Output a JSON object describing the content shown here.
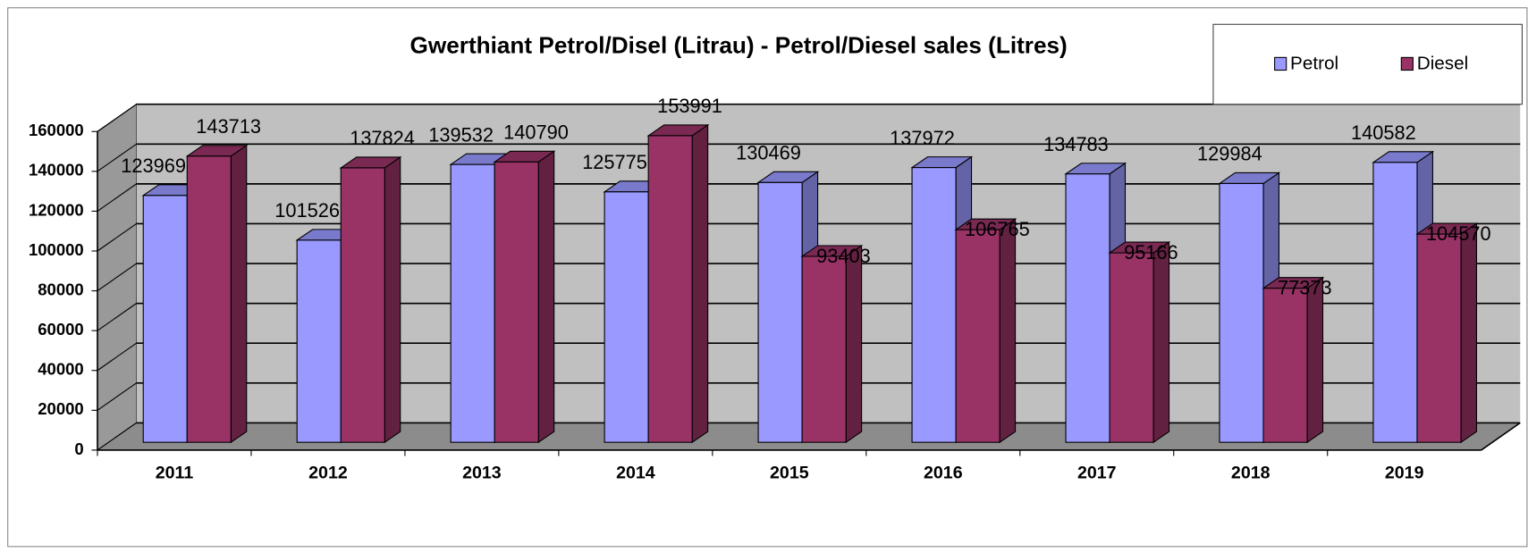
{
  "chart_data": {
    "type": "bar3d",
    "title": "Gwerthiant Petrol/Disel (Litrau)  -  Petrol/Diesel sales (Litres)",
    "categories": [
      "2011",
      "2012",
      "2013",
      "2014",
      "2015",
      "2016",
      "2017",
      "2018",
      "2019"
    ],
    "series": [
      {
        "name": "Petrol",
        "color": "#9999ff",
        "values": [
          123969,
          101526,
          139532,
          125775,
          130469,
          137972,
          134783,
          129984,
          140582
        ]
      },
      {
        "name": "Diesel",
        "color": "#993366",
        "values": [
          143713,
          137824,
          140790,
          153991,
          93403,
          106765,
          95166,
          77373,
          104570
        ]
      }
    ],
    "ylim": [
      0,
      160000
    ],
    "yticks": [
      0,
      20000,
      40000,
      60000,
      80000,
      100000,
      120000,
      140000,
      160000
    ],
    "grid": true,
    "legend": "top-right"
  }
}
